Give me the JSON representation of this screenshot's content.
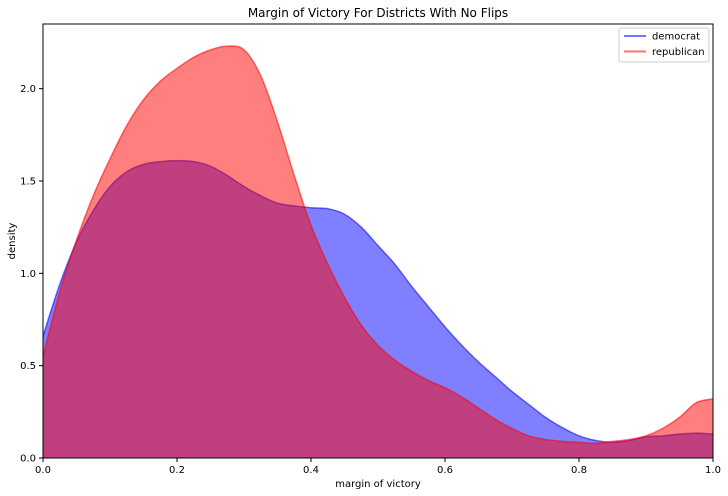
{
  "chart_data": {
    "type": "area",
    "title": "Margin of Victory For Districts With No Flips",
    "xlabel": "margin of victory",
    "ylabel": "density",
    "xlim": [
      0,
      1
    ],
    "ylim": [
      0,
      2.35
    ],
    "xticks": [
      "0.0",
      "0.2",
      "0.4",
      "0.6",
      "0.8",
      "1.0"
    ],
    "yticks": [
      "0.0",
      "0.5",
      "1.0",
      "1.5",
      "2.0"
    ],
    "grid": false,
    "legend_position": "top-right",
    "series": [
      {
        "name": "democrat",
        "color": "#0000ff",
        "x": [
          0.0,
          0.025,
          0.05,
          0.075,
          0.1,
          0.125,
          0.15,
          0.175,
          0.2,
          0.225,
          0.25,
          0.275,
          0.3,
          0.325,
          0.35,
          0.375,
          0.4,
          0.425,
          0.45,
          0.475,
          0.5,
          0.525,
          0.55,
          0.575,
          0.6,
          0.625,
          0.65,
          0.675,
          0.7,
          0.725,
          0.75,
          0.775,
          0.8,
          0.825,
          0.85,
          0.875,
          0.9,
          0.925,
          0.95,
          0.975,
          1.0
        ],
        "y": [
          0.66,
          0.94,
          1.17,
          1.34,
          1.47,
          1.55,
          1.59,
          1.605,
          1.61,
          1.605,
          1.58,
          1.53,
          1.47,
          1.42,
          1.38,
          1.365,
          1.355,
          1.35,
          1.32,
          1.25,
          1.15,
          1.05,
          0.93,
          0.82,
          0.71,
          0.61,
          0.52,
          0.44,
          0.36,
          0.29,
          0.22,
          0.165,
          0.12,
          0.095,
          0.085,
          0.095,
          0.115,
          0.12,
          0.13,
          0.135,
          0.13
        ]
      },
      {
        "name": "republican",
        "color": "#ff0000",
        "x": [
          0.0,
          0.025,
          0.05,
          0.075,
          0.1,
          0.125,
          0.15,
          0.175,
          0.2,
          0.225,
          0.25,
          0.275,
          0.3,
          0.325,
          0.35,
          0.375,
          0.4,
          0.425,
          0.45,
          0.475,
          0.5,
          0.525,
          0.55,
          0.575,
          0.6,
          0.625,
          0.65,
          0.675,
          0.7,
          0.725,
          0.75,
          0.775,
          0.8,
          0.825,
          0.85,
          0.875,
          0.9,
          0.925,
          0.95,
          0.975,
          1.0
        ],
        "y": [
          0.55,
          0.9,
          1.18,
          1.42,
          1.62,
          1.8,
          1.94,
          2.04,
          2.11,
          2.17,
          2.21,
          2.23,
          2.21,
          2.07,
          1.82,
          1.53,
          1.26,
          1.05,
          0.87,
          0.72,
          0.61,
          0.53,
          0.47,
          0.42,
          0.38,
          0.33,
          0.27,
          0.21,
          0.16,
          0.12,
          0.1,
          0.09,
          0.085,
          0.08,
          0.09,
          0.1,
          0.12,
          0.16,
          0.22,
          0.3,
          0.32
        ]
      }
    ]
  }
}
